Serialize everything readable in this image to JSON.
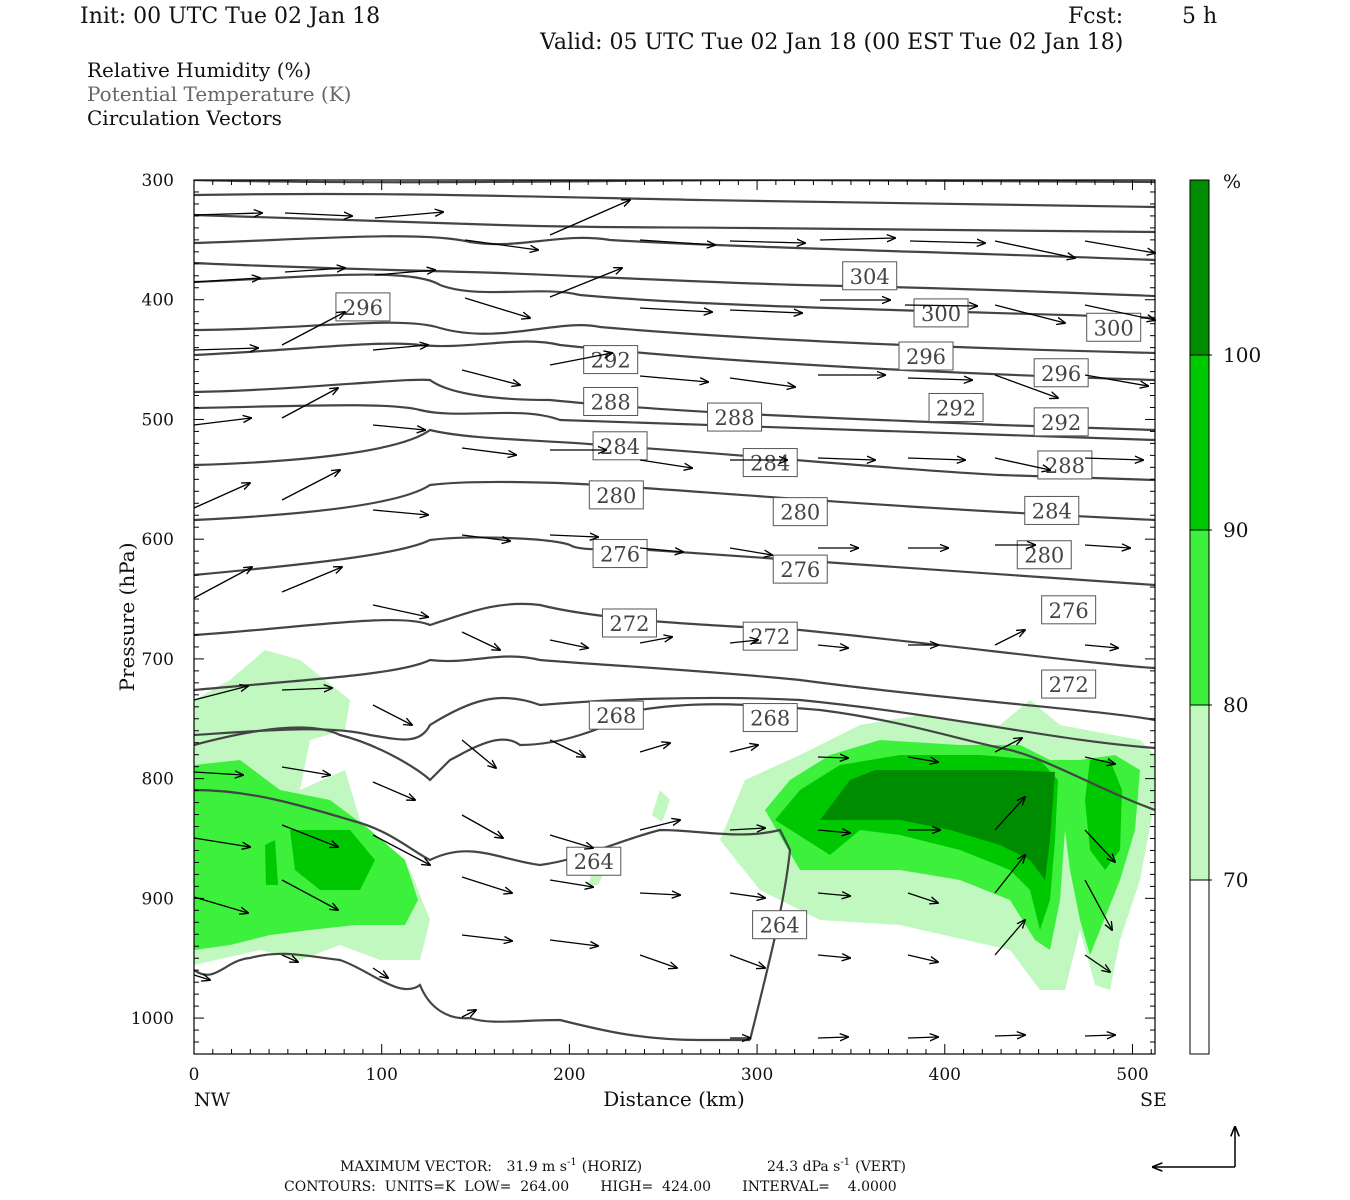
{
  "header": {
    "init": "Init: 00 UTC Tue 02 Jan 18",
    "fcst_label": "Fcst:",
    "fcst_value": "5 h",
    "valid": "Valid: 05 UTC Tue 02 Jan 18 (00 EST Tue 02 Jan 18)"
  },
  "legend_lines": {
    "rh": "Relative Humidity (%)",
    "theta": "Potential Temperature (K)",
    "vectors": "Circulation Vectors"
  },
  "footer": {
    "max_vector_label": "MAXIMUM VECTOR:",
    "max_vector_horiz": "31.9 m s",
    "horiz_unit": "(HORIZ)",
    "max_vector_vert": "24.3 dPa s",
    "vert_unit": "(VERT)",
    "exponent": "-1",
    "contours_line": "CONTOURS:  UNITS=K  LOW=  264.00       HIGH=  424.00       INTERVAL=    4.0000"
  },
  "colors": {
    "rh_70": "#c0f8c0",
    "rh_80": "#3cf03c",
    "rh_90": "#00c800",
    "rh_100": "#008c00",
    "contour": "#444444"
  },
  "chart_data": {
    "type": "contour_cross_section",
    "xlabel": "Distance (km)",
    "ylabel": "Pressure (hPa)",
    "xlim": [
      0,
      512
    ],
    "ylim": [
      1030,
      300
    ],
    "x_ticks": [
      "0",
      "100",
      "200",
      "300",
      "400",
      "500"
    ],
    "x_tick_values": [
      0,
      100,
      200,
      300,
      400,
      500
    ],
    "x_end_labels": {
      "left": "NW",
      "right": "SE"
    },
    "y_ticks": [
      "300",
      "400",
      "500",
      "600",
      "700",
      "800",
      "900",
      "1000"
    ],
    "y_tick_values": [
      300,
      400,
      500,
      600,
      700,
      800,
      900,
      1000
    ],
    "colorbar": {
      "unit": "%",
      "levels": [
        "70",
        "80",
        "90",
        "100"
      ],
      "level_values": [
        70,
        80,
        90,
        100
      ]
    },
    "contour_labels": [
      {
        "text": "296",
        "x": 90,
        "p": 406
      },
      {
        "text": "292",
        "x": 222,
        "p": 450
      },
      {
        "text": "304",
        "x": 360,
        "p": 380
      },
      {
        "text": "300",
        "x": 398,
        "p": 411
      },
      {
        "text": "300",
        "x": 490,
        "p": 423
      },
      {
        "text": "296",
        "x": 390,
        "p": 447
      },
      {
        "text": "296",
        "x": 462,
        "p": 461
      },
      {
        "text": "288",
        "x": 222,
        "p": 485
      },
      {
        "text": "288",
        "x": 288,
        "p": 498
      },
      {
        "text": "292",
        "x": 406,
        "p": 490
      },
      {
        "text": "292",
        "x": 462,
        "p": 502
      },
      {
        "text": "284",
        "x": 227,
        "p": 522
      },
      {
        "text": "284",
        "x": 307,
        "p": 536
      },
      {
        "text": "288",
        "x": 464,
        "p": 538
      },
      {
        "text": "280",
        "x": 225,
        "p": 563
      },
      {
        "text": "280",
        "x": 323,
        "p": 577
      },
      {
        "text": "284",
        "x": 457,
        "p": 576
      },
      {
        "text": "276",
        "x": 227,
        "p": 612
      },
      {
        "text": "276",
        "x": 323,
        "p": 625
      },
      {
        "text": "280",
        "x": 453,
        "p": 613
      },
      {
        "text": "272",
        "x": 232,
        "p": 670
      },
      {
        "text": "272",
        "x": 307,
        "p": 681
      },
      {
        "text": "276",
        "x": 466,
        "p": 659
      },
      {
        "text": "272",
        "x": 466,
        "p": 721
      },
      {
        "text": "268",
        "x": 225,
        "p": 747
      },
      {
        "text": "268",
        "x": 307,
        "p": 749
      },
      {
        "text": "264",
        "x": 213,
        "p": 869
      },
      {
        "text": "264",
        "x": 312,
        "p": 922
      }
    ]
  }
}
